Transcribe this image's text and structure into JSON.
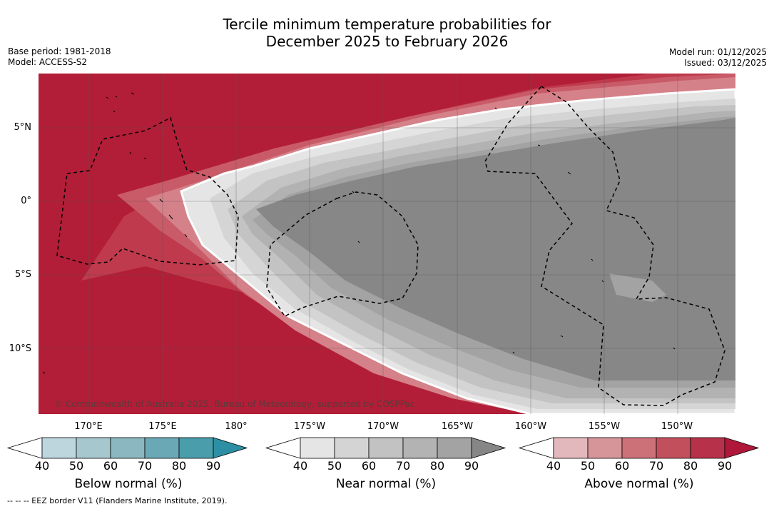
{
  "title": {
    "line1": "Tercile minimum temperature probabilities for",
    "line2": "December 2025 to February 2026"
  },
  "meta_left": {
    "base_period": "Base period: 1981-2018",
    "model": "Model: ACCESS-S2"
  },
  "meta_right": {
    "model_run": "Model run: 01/12/2025",
    "issued": "Issued: 03/12/2025"
  },
  "map": {
    "lat_labels": [
      "5°N",
      "0°",
      "5°S",
      "10°S"
    ],
    "lon_labels": [
      "170°E",
      "175°E",
      "180°",
      "175°W",
      "170°W",
      "165°W",
      "160°W",
      "155°W",
      "150°W"
    ],
    "copyright": "© Commonwealth of Australia 2025, Bureau of Meteorology, supported by COSPPac",
    "colors": {
      "above_90": "#b21e37",
      "above_80": "#bf3a4c",
      "above_70": "#c95b68",
      "above_60": "#d58189",
      "near_40": "#e5e5e5",
      "near_50": "#d5d5d5",
      "near_60": "#c3c3c3",
      "near_70": "#b2b2b2",
      "near_80": "#a3a3a3",
      "near_90": "#878787"
    }
  },
  "colorbars": [
    {
      "label": "Below normal (%)",
      "ticks": [
        "40",
        "50",
        "60",
        "70",
        "80",
        "90"
      ],
      "colors": [
        "#ffffff",
        "#bdd5dc",
        "#a6c7cd",
        "#8ab7c0",
        "#6aa8b5",
        "#4a9dab",
        "#2c8fa3"
      ]
    },
    {
      "label": "Near normal (%)",
      "ticks": [
        "40",
        "50",
        "60",
        "70",
        "80",
        "90"
      ],
      "colors": [
        "#ffffff",
        "#e5e5e5",
        "#d4d4d4",
        "#c2c2c2",
        "#b3b3b3",
        "#a3a3a3",
        "#868686"
      ]
    },
    {
      "label": "Above normal (%)",
      "ticks": [
        "40",
        "50",
        "60",
        "70",
        "80",
        "90"
      ],
      "colors": [
        "#ffffff",
        "#e3b8bd",
        "#d69599",
        "#cc7178",
        "#c24f5c",
        "#b8314a",
        "#b0183a"
      ]
    }
  ],
  "footnote": "--  --  -- EEZ border V11 (Flanders Marine Institute, 2019)."
}
